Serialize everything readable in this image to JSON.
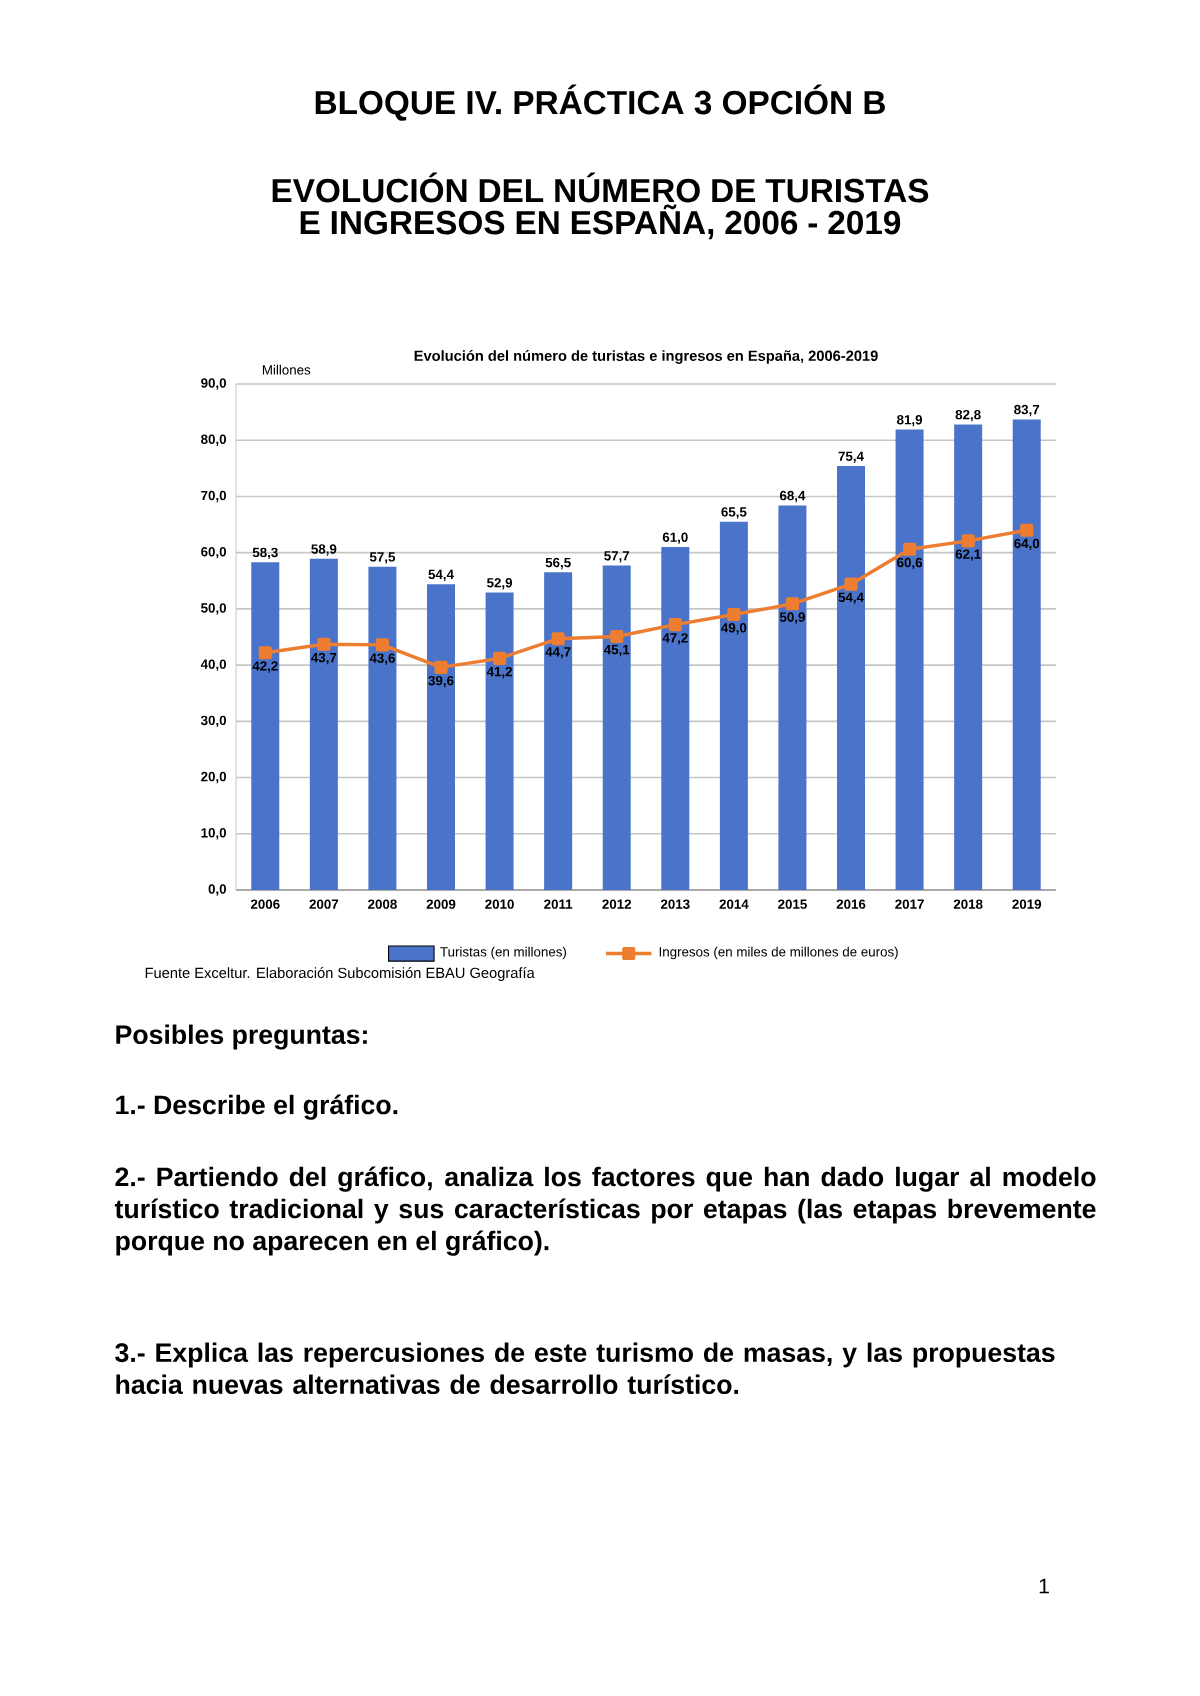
{
  "chart_data": {
    "type": "bar",
    "title": "Evolución del número de turistas e ingresos en España, 2006-2019",
    "ylabel": "Millones",
    "categories": [
      "2006",
      "2007",
      "2008",
      "2009",
      "2010",
      "2011",
      "2012",
      "2013",
      "2014",
      "2015",
      "2016",
      "2017",
      "2018",
      "2019"
    ],
    "series": [
      {
        "name": "Turistas (en millones)",
        "color": "#4a74c9",
        "values": [
          58.3,
          58.9,
          57.5,
          54.4,
          52.9,
          56.5,
          57.7,
          61.0,
          65.5,
          68.4,
          75.4,
          81.9,
          82.8,
          83.7
        ],
        "value_labels": [
          "58,3",
          "58,9",
          "57,5",
          "54,4",
          "52,9",
          "56,5",
          "57,7",
          "61,0",
          "65,5",
          "68,4",
          "75,4",
          "81,9",
          "82,8",
          "83,7"
        ]
      },
      {
        "name": "Ingresos (en miles de millones de euros)",
        "type": "line",
        "color": "#ed7d31",
        "marker": "square",
        "values": [
          42.2,
          43.7,
          43.6,
          39.6,
          41.2,
          44.7,
          45.1,
          47.2,
          49.0,
          50.9,
          54.4,
          60.6,
          62.1,
          64.0
        ],
        "value_labels": [
          "42,2",
          "43,7",
          "43,6",
          "39,6",
          "41,2",
          "44,7",
          "45,1",
          "47,2",
          "49,0",
          "50,9",
          "54,4",
          "60,6",
          "62,1",
          "64,0"
        ]
      }
    ],
    "ylim": [
      0,
      90
    ],
    "yticks": [
      {
        "value": 0,
        "label": "0,0"
      },
      {
        "value": 10,
        "label": "10,0"
      },
      {
        "value": 20,
        "label": "20,0"
      },
      {
        "value": 30,
        "label": "30,0"
      },
      {
        "value": 40,
        "label": "40,0"
      },
      {
        "value": 50,
        "label": "50,0"
      },
      {
        "value": 60,
        "label": "60,0"
      },
      {
        "value": 70,
        "label": "70,0"
      },
      {
        "value": 80,
        "label": "80,0"
      },
      {
        "value": 90,
        "label": "90,0"
      }
    ],
    "grid": "y",
    "legend": "bottom",
    "annotations": [
      "BLOQUE IV. PRÁCTICA 3 OPCIÓN B",
      "EVOLUCIÓN DEL NÚMERO DE TURISTAS E INGRESOS EN ESPAÑA, 2006 - 2019",
      "Fuente Exceltur. Elaboración Subcomisión EBAU Geografía",
      "Posibles preguntas:",
      "1.- Describe el gráfico.",
      "2.- Partiendo del gráfico, analiza los factores que han dado lugar al modelo turístico tradicional y sus características por etapas (las etapas brevemente porque no aparecen en el gráfico).",
      "3.- Explica las repercusiones de este turismo de masas, y las propuestas hacia nuevas alternativas de desarrollo turístico.",
      "1"
    ]
  }
}
